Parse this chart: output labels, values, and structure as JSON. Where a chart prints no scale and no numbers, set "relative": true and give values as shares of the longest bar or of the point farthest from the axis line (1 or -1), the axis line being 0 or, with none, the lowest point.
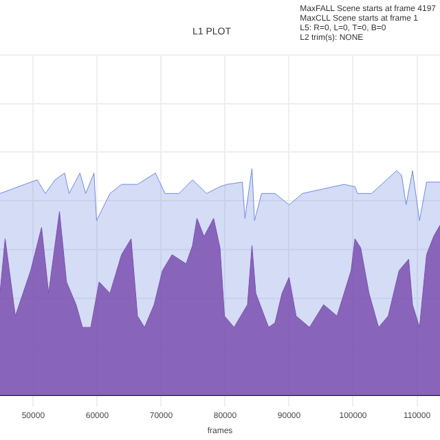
{
  "chart_data": {
    "type": "area",
    "title": "L1 PLOT",
    "xlabel": "frames",
    "annotations": [
      "MaxFALL Scene starts at frame 4197",
      "MaxCLL Scene starts at frame 1",
      "L5: R=0, L=0, T=0, B=0",
      "L2 trim(s): NONE"
    ],
    "relative": true,
    "grid": true,
    "legend": false,
    "xlim": [
      44800,
      113600
    ],
    "xticks": [
      50000,
      60000,
      70000,
      80000,
      90000,
      100000,
      110000
    ],
    "series": [
      {
        "color": "#6f8ae0",
        "x": [
          44800,
          50600,
          51900,
          53400,
          54900,
          55600,
          57300,
          58200,
          59500,
          59900,
          62000,
          63800,
          66300,
          69100,
          70600,
          72800,
          74900,
          77100,
          79200,
          80300,
          82700,
          83100,
          84200,
          84600,
          85700,
          87800,
          90000,
          92100,
          98600,
          100300,
          100700,
          102900,
          106800,
          107600,
          108300,
          109300,
          110400,
          111500,
          113600
        ],
        "values": [
          0.89,
          0.95,
          0.89,
          0.95,
          0.98,
          0.89,
          0.98,
          0.89,
          0.98,
          0.77,
          0.89,
          0.93,
          0.93,
          0.98,
          0.89,
          0.89,
          0.95,
          0.89,
          0.92,
          0.93,
          0.94,
          0.78,
          1,
          0.77,
          0.89,
          0.89,
          0.84,
          0.89,
          0.93,
          0.92,
          0.89,
          0.89,
          0.99,
          0.97,
          0.84,
          0.99,
          0.77,
          0.94,
          0.94
        ]
      },
      {
        "color": "#7a50b0",
        "x": [
          44800,
          45600,
          47200,
          49600,
          51300,
          52400,
          54100,
          55200,
          56700,
          57700,
          59000,
          60300,
          62000,
          63800,
          65300,
          66300,
          67400,
          68900,
          70200,
          71700,
          73900,
          74900,
          75600,
          76700,
          78200,
          79200,
          79900,
          81400,
          83500,
          84200,
          84800,
          86800,
          87800,
          88900,
          90000,
          91100,
          93200,
          95400,
          97500,
          99700,
          100300,
          101200,
          102500,
          104000,
          105500,
          107200,
          108700,
          109300,
          110400,
          111500,
          112600,
          113600
        ],
        "values": [
          0.45,
          0.69,
          0.35,
          0.55,
          0.74,
          0.45,
          0.81,
          0.5,
          0.4,
          0.3,
          0.3,
          0.5,
          0.45,
          0.62,
          0.69,
          0.35,
          0.3,
          0.4,
          0.55,
          0.62,
          0.58,
          0.66,
          0.78,
          0.7,
          0.78,
          0.65,
          0.35,
          0.3,
          0.4,
          0.66,
          0.45,
          0.3,
          0.32,
          0.45,
          0.52,
          0.35,
          0.3,
          0.4,
          0.35,
          0.55,
          0.69,
          0.65,
          0.45,
          0.3,
          0.35,
          0.55,
          0.6,
          0.4,
          0.3,
          0.62,
          0.7,
          0.75
        ]
      }
    ]
  }
}
